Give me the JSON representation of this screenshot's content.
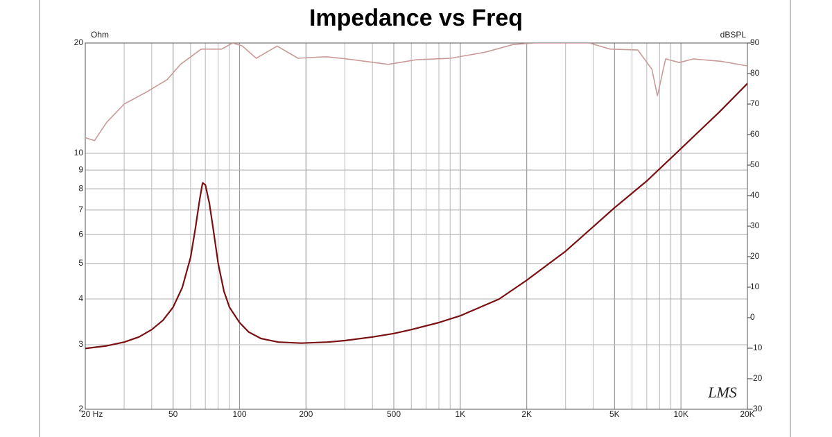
{
  "chart_data": {
    "type": "line",
    "title": "Impedance vs Freq",
    "y_label": "Ohm",
    "y2_label": "dBSPL",
    "watermark": "LMS",
    "x_scale": "log",
    "y_scale": "log",
    "grid": true,
    "minor_grid": true,
    "xlim": [
      20,
      20000
    ],
    "ylim": [
      2,
      20
    ],
    "y2lim": [
      -30,
      90
    ],
    "xticks": [
      {
        "value": 20,
        "label": "20 Hz"
      },
      50,
      100,
      200,
      500,
      {
        "value": 1000,
        "label": "1K"
      },
      {
        "value": 2000,
        "label": "2K"
      },
      {
        "value": 5000,
        "label": "5K"
      },
      {
        "value": 10000,
        "label": "10K"
      },
      {
        "value": 20000,
        "label": "20K"
      }
    ],
    "yticks": [
      2,
      3,
      4,
      5,
      6,
      7,
      8,
      9,
      10,
      20
    ],
    "y2ticks": [
      -30,
      -20,
      -10,
      0,
      10,
      20,
      30,
      40,
      50,
      60,
      70,
      80,
      90
    ],
    "series": [
      {
        "color": "#7a0f12",
        "x": [
          20,
          25,
          30,
          35,
          40,
          45,
          50,
          55,
          60,
          63,
          66,
          68,
          70,
          73,
          76,
          80,
          85,
          90,
          100,
          110,
          125,
          150,
          190,
          250,
          300,
          400,
          500,
          600,
          800,
          1000,
          1500,
          2000,
          3000,
          4000,
          5000,
          7000,
          10000,
          15000,
          20000
        ],
        "values": [
          2.93,
          2.98,
          3.05,
          3.15,
          3.3,
          3.5,
          3.8,
          4.3,
          5.2,
          6.2,
          7.5,
          8.3,
          8.2,
          7.3,
          6.2,
          5.0,
          4.2,
          3.8,
          3.45,
          3.25,
          3.12,
          3.05,
          3.03,
          3.05,
          3.08,
          3.15,
          3.22,
          3.3,
          3.45,
          3.6,
          4.0,
          4.5,
          5.4,
          6.3,
          7.1,
          8.4,
          10.3,
          13,
          15.5
        ]
      },
      {
        "color": "#c99a98",
        "axis": "y2",
        "x": [
          20,
          22,
          25,
          30,
          38,
          47,
          54,
          67,
          83,
          93,
          103,
          119,
          148,
          184,
          246,
          306,
          472,
          630,
          904,
          1300,
          1734,
          2155,
          3846,
          4776,
          6380,
          7380,
          7820,
          8520,
          9840,
          11380,
          15200,
          20000
        ],
        "values": [
          59,
          58,
          64,
          70,
          74,
          78,
          83,
          88,
          88,
          90,
          89,
          85,
          89,
          85,
          85.5,
          84.8,
          83,
          84.5,
          85,
          87,
          89.5,
          90,
          90,
          88,
          87.7,
          81.4,
          72.7,
          84.8,
          83.6,
          84.8,
          84,
          82.5
        ]
      }
    ]
  }
}
